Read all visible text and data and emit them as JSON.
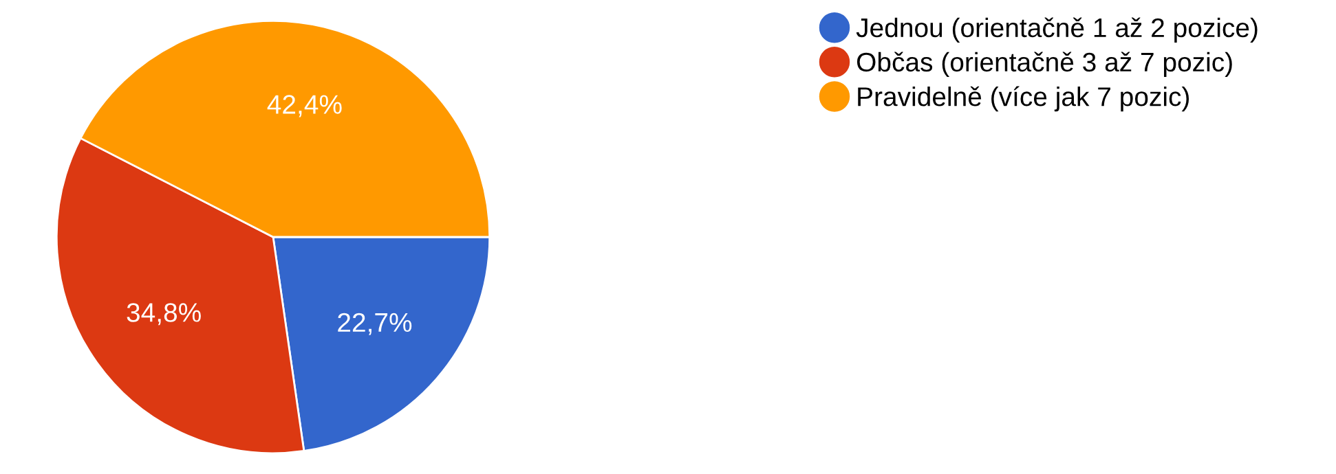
{
  "chart_data": {
    "type": "pie",
    "categories": [
      "Jednou (orientačně 1 až 2 pozice)",
      "Občas (orientačně 3 až 7 pozic)",
      "Pravidelně (více jak 7 pozic)"
    ],
    "values": [
      22.7,
      34.8,
      42.4
    ],
    "colors": [
      "#3366cc",
      "#dc3912",
      "#ff9900"
    ],
    "value_labels": [
      "22,7%",
      "34,8%",
      "42,4%"
    ],
    "legend": "top right"
  }
}
